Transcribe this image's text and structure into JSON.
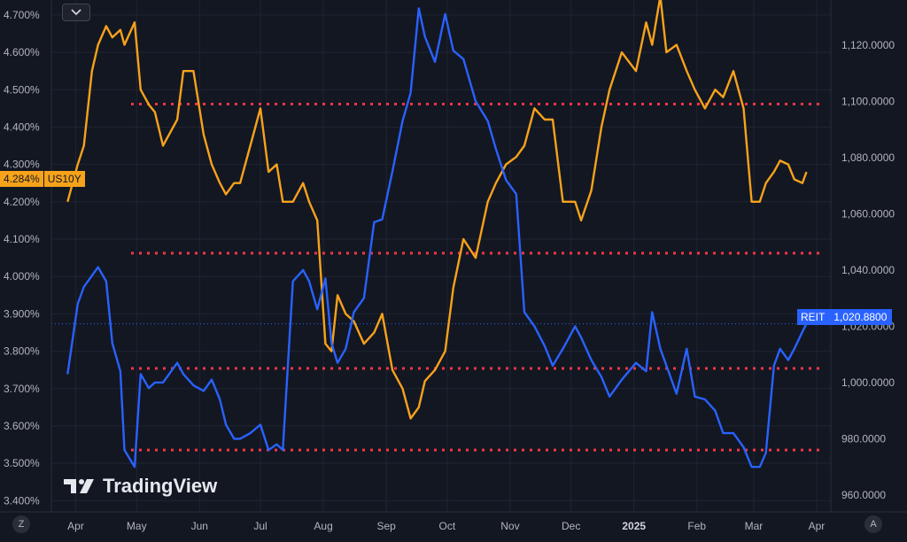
{
  "chart_data": {
    "type": "line",
    "left_axis": {
      "unit": "%",
      "ticks": [
        "4.700%",
        "4.600%",
        "4.500%",
        "4.400%",
        "4.300%",
        "4.200%",
        "4.100%",
        "4.000%",
        "3.900%",
        "3.800%",
        "3.700%",
        "3.600%",
        "3.500%",
        "3.400%"
      ],
      "range": [
        3.37,
        4.74
      ]
    },
    "right_axis": {
      "ticks": [
        "1,120.0000",
        "1,100.0000",
        "1,080.0000",
        "1,060.0000",
        "1,040.0000",
        "1,020.0000",
        "1,000.0000",
        "980.0000",
        "960.0000"
      ],
      "range": [
        954,
        1136
      ]
    },
    "x_axis": {
      "labels": [
        "Apr",
        "May",
        "Jun",
        "Jul",
        "Aug",
        "Sep",
        "Oct",
        "Nov",
        "Dec",
        "2025",
        "Feb",
        "Mar",
        "Apr"
      ],
      "bold_labels": [
        "2025"
      ]
    },
    "series": [
      {
        "name": "US10Y",
        "axis": "left",
        "color": "#f7a21b",
        "last_label": "4.284%",
        "x": [
          "2024-03-28",
          "2024-04-02",
          "2024-04-05",
          "2024-04-09",
          "2024-04-12",
          "2024-04-16",
          "2024-04-19",
          "2024-04-23",
          "2024-04-25",
          "2024-04-30",
          "2024-05-03",
          "2024-05-07",
          "2024-05-10",
          "2024-05-14",
          "2024-05-17",
          "2024-05-21",
          "2024-05-24",
          "2024-05-29",
          "2024-06-03",
          "2024-06-07",
          "2024-06-11",
          "2024-06-14",
          "2024-06-18",
          "2024-06-21",
          "2024-06-26",
          "2024-07-01",
          "2024-07-05",
          "2024-07-09",
          "2024-07-12",
          "2024-07-17",
          "2024-07-22",
          "2024-07-25",
          "2024-07-29",
          "2024-08-02",
          "2024-08-05",
          "2024-08-08",
          "2024-08-12",
          "2024-08-16",
          "2024-08-21",
          "2024-08-26",
          "2024-08-30",
          "2024-09-04",
          "2024-09-09",
          "2024-09-13",
          "2024-09-17",
          "2024-09-20",
          "2024-09-25",
          "2024-09-30",
          "2024-10-04",
          "2024-10-09",
          "2024-10-15",
          "2024-10-21",
          "2024-10-25",
          "2024-10-30",
          "2024-11-04",
          "2024-11-08",
          "2024-11-13",
          "2024-11-18",
          "2024-11-22",
          "2024-11-27",
          "2024-12-03",
          "2024-12-06",
          "2024-12-11",
          "2024-12-16",
          "2024-12-20",
          "2024-12-26",
          "2025-01-02",
          "2025-01-07",
          "2025-01-10",
          "2025-01-14",
          "2025-01-17",
          "2025-01-22",
          "2025-01-27",
          "2025-01-31",
          "2025-02-05",
          "2025-02-10",
          "2025-02-14",
          "2025-02-19",
          "2025-02-24",
          "2025-02-28",
          "2025-03-04",
          "2025-03-07",
          "2025-03-11",
          "2025-03-14",
          "2025-03-18",
          "2025-03-21",
          "2025-03-25",
          "2025-03-27"
        ],
        "y": [
          4.2,
          4.3,
          4.35,
          4.55,
          4.62,
          4.67,
          4.64,
          4.66,
          4.62,
          4.68,
          4.5,
          4.46,
          4.44,
          4.35,
          4.38,
          4.42,
          4.55,
          4.55,
          4.38,
          4.3,
          4.25,
          4.22,
          4.25,
          4.25,
          4.35,
          4.45,
          4.28,
          4.3,
          4.2,
          4.2,
          4.25,
          4.2,
          4.15,
          3.82,
          3.8,
          3.95,
          3.9,
          3.88,
          3.82,
          3.85,
          3.9,
          3.75,
          3.7,
          3.62,
          3.65,
          3.72,
          3.75,
          3.8,
          3.97,
          4.1,
          4.05,
          4.2,
          4.25,
          4.3,
          4.32,
          4.35,
          4.45,
          4.42,
          4.42,
          4.2,
          4.2,
          4.15,
          4.23,
          4.4,
          4.5,
          4.6,
          4.55,
          4.68,
          4.62,
          4.75,
          4.6,
          4.62,
          4.55,
          4.5,
          4.45,
          4.5,
          4.48,
          4.55,
          4.45,
          4.2,
          4.2,
          4.25,
          4.28,
          4.31,
          4.3,
          4.26,
          4.25,
          4.28
        ]
      },
      {
        "name": "REIT",
        "axis": "right",
        "color": "#2962ff",
        "last_label": "1,020.8800",
        "x": [
          "2024-03-28",
          "2024-04-02",
          "2024-04-05",
          "2024-04-09",
          "2024-04-12",
          "2024-04-16",
          "2024-04-19",
          "2024-04-23",
          "2024-04-25",
          "2024-04-30",
          "2024-05-03",
          "2024-05-07",
          "2024-05-10",
          "2024-05-14",
          "2024-05-17",
          "2024-05-21",
          "2024-05-24",
          "2024-05-29",
          "2024-06-03",
          "2024-06-07",
          "2024-06-11",
          "2024-06-14",
          "2024-06-18",
          "2024-06-21",
          "2024-06-26",
          "2024-07-01",
          "2024-07-05",
          "2024-07-09",
          "2024-07-12",
          "2024-07-17",
          "2024-07-22",
          "2024-07-25",
          "2024-07-29",
          "2024-08-02",
          "2024-08-05",
          "2024-08-08",
          "2024-08-12",
          "2024-08-16",
          "2024-08-21",
          "2024-08-26",
          "2024-08-30",
          "2024-09-04",
          "2024-09-09",
          "2024-09-13",
          "2024-09-17",
          "2024-09-20",
          "2024-09-25",
          "2024-09-30",
          "2024-10-04",
          "2024-10-09",
          "2024-10-15",
          "2024-10-21",
          "2024-10-25",
          "2024-10-30",
          "2024-11-04",
          "2024-11-08",
          "2024-11-13",
          "2024-11-18",
          "2024-11-22",
          "2024-11-27",
          "2024-12-03",
          "2024-12-06",
          "2024-12-11",
          "2024-12-16",
          "2024-12-20",
          "2024-12-26",
          "2025-01-02",
          "2025-01-07",
          "2025-01-10",
          "2025-01-14",
          "2025-01-17",
          "2025-01-22",
          "2025-01-27",
          "2025-01-31",
          "2025-02-05",
          "2025-02-10",
          "2025-02-14",
          "2025-02-19",
          "2025-02-24",
          "2025-02-28",
          "2025-03-04",
          "2025-03-07",
          "2025-03-11",
          "2025-03-14",
          "2025-03-18",
          "2025-03-21",
          "2025-03-25",
          "2025-03-27"
        ],
        "y": [
          1003,
          1028,
          1034,
          1038,
          1041,
          1036,
          1014,
          1004,
          976,
          970,
          1003,
          998,
          1000,
          1000,
          1003,
          1007,
          1003,
          999,
          997,
          1001,
          994,
          985,
          980,
          980,
          982,
          985,
          976,
          978,
          976,
          1036,
          1040,
          1036,
          1026,
          1037,
          1014,
          1007,
          1012,
          1025,
          1030,
          1057,
          1058,
          1075,
          1093,
          1103,
          1133,
          1123,
          1114,
          1131,
          1118,
          1115,
          1100,
          1093,
          1083,
          1072,
          1067,
          1025,
          1020,
          1013,
          1006,
          1012,
          1020,
          1016,
          1008,
          1002,
          995,
          1001,
          1007,
          1004,
          1025,
          1012,
          1006,
          996,
          1012,
          995,
          994,
          990,
          982,
          982,
          977,
          970,
          970,
          975,
          1006,
          1012,
          1008,
          1012,
          1018,
          1020.88
        ]
      }
    ],
    "reference_lines": [
      {
        "axis": "right",
        "value": 1099,
        "color": "#f23645",
        "style": "dotted"
      },
      {
        "axis": "right",
        "value": 1046,
        "color": "#f23645",
        "style": "dotted"
      },
      {
        "axis": "right",
        "value": 1005,
        "color": "#f23645",
        "style": "dotted"
      },
      {
        "axis": "right",
        "value": 976,
        "color": "#f23645",
        "style": "dotted"
      }
    ],
    "current_value_guide": {
      "axis": "right",
      "value": 1020.88,
      "color": "#2962ff",
      "style": "dotted"
    },
    "grid": true,
    "background": "#131722",
    "grid_color": "#1f2433",
    "text_color": "#b2b5be"
  },
  "ui": {
    "logo_text": "TradingView",
    "left_corner_button": "Z",
    "right_corner_button": "A",
    "collapse_icon": "chevron-down-icon"
  }
}
